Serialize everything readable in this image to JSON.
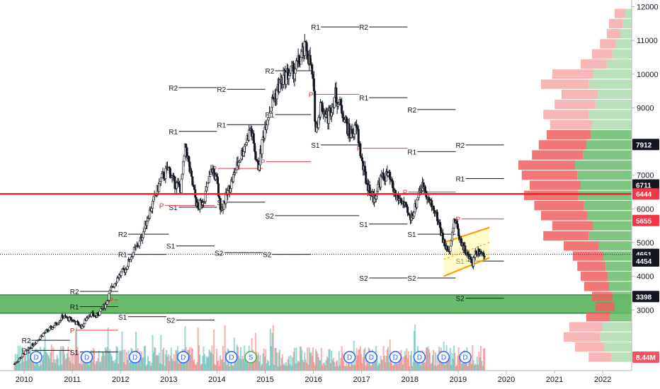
{
  "chart_data": {
    "type": "candlestick",
    "title": "",
    "xlabel": "",
    "ylabel": "",
    "ylim": [
      1200,
      12200
    ],
    "xlim": [
      2009.5,
      2022.6
    ],
    "x_ticks": [
      "2010",
      "2011",
      "2012",
      "2013",
      "2014",
      "2015",
      "2016",
      "2017",
      "2018",
      "2019",
      "2020",
      "2021",
      "2022"
    ],
    "y_ticks": [
      "3000",
      "4000",
      "5000",
      "6000",
      "7000",
      "8000",
      "9000",
      "10000",
      "11000",
      "12000"
    ],
    "price_path": [
      [
        2009.8,
        1400
      ],
      [
        2010.0,
        1700
      ],
      [
        2010.2,
        2000
      ],
      [
        2010.4,
        2300
      ],
      [
        2010.6,
        2500
      ],
      [
        2010.8,
        2800
      ],
      [
        2011.0,
        2700
      ],
      [
        2011.2,
        2500
      ],
      [
        2011.35,
        2900
      ],
      [
        2011.5,
        2800
      ],
      [
        2011.7,
        3200
      ],
      [
        2011.8,
        3600
      ],
      [
        2011.95,
        4000
      ],
      [
        2012.1,
        4200
      ],
      [
        2012.25,
        4700
      ],
      [
        2012.4,
        5000
      ],
      [
        2012.55,
        5700
      ],
      [
        2012.7,
        6300
      ],
      [
        2012.85,
        6900
      ],
      [
        2013.0,
        7200
      ],
      [
        2013.1,
        6800
      ],
      [
        2013.25,
        6600
      ],
      [
        2013.35,
        7900
      ],
      [
        2013.45,
        7000
      ],
      [
        2013.6,
        6000
      ],
      [
        2013.75,
        6400
      ],
      [
        2013.9,
        7200
      ],
      [
        2014.0,
        6800
      ],
      [
        2014.05,
        6200
      ],
      [
        2014.1,
        6000
      ],
      [
        2014.25,
        6600
      ],
      [
        2014.4,
        7200
      ],
      [
        2014.55,
        7800
      ],
      [
        2014.7,
        8400
      ],
      [
        2014.85,
        7200
      ],
      [
        2015.0,
        8500
      ],
      [
        2015.15,
        9200
      ],
      [
        2015.3,
        9700
      ],
      [
        2015.45,
        10000
      ],
      [
        2015.6,
        10100
      ],
      [
        2015.75,
        10500
      ],
      [
        2015.85,
        10800
      ],
      [
        2015.95,
        10200
      ],
      [
        2016.0,
        9600
      ],
      [
        2016.05,
        8300
      ],
      [
        2016.15,
        9100
      ],
      [
        2016.3,
        8700
      ],
      [
        2016.45,
        9400
      ],
      [
        2016.6,
        8900
      ],
      [
        2016.75,
        8200
      ],
      [
        2016.9,
        8400
      ],
      [
        2017.0,
        7400
      ],
      [
        2017.1,
        6800
      ],
      [
        2017.15,
        6600
      ],
      [
        2017.25,
        6300
      ],
      [
        2017.4,
        6900
      ],
      [
        2017.55,
        7000
      ],
      [
        2017.7,
        6400
      ],
      [
        2017.85,
        6200
      ],
      [
        2018.0,
        5700
      ],
      [
        2018.1,
        6000
      ],
      [
        2018.2,
        6600
      ],
      [
        2018.3,
        6700
      ],
      [
        2018.4,
        6200
      ],
      [
        2018.5,
        6000
      ],
      [
        2018.6,
        5600
      ],
      [
        2018.7,
        5000
      ],
      [
        2018.8,
        4700
      ],
      [
        2018.9,
        5500
      ],
      [
        2018.95,
        5700
      ],
      [
        2019.0,
        5300
      ],
      [
        2019.1,
        4900
      ],
      [
        2019.2,
        4600
      ],
      [
        2019.3,
        4400
      ],
      [
        2019.35,
        4700
      ],
      [
        2019.45,
        4800
      ],
      [
        2019.55,
        4600
      ]
    ],
    "pivots": [
      {
        "label": "R1",
        "level": 11400,
        "x_start": 2015.95,
        "x_end": 2016.95
      },
      {
        "label": "R2",
        "level": 11400,
        "x_start": 2016.95,
        "x_end": 2017.95
      },
      {
        "label": "R2",
        "level": 9600,
        "x_start": 2013.0,
        "x_end": 2014.0
      },
      {
        "label": "R2",
        "level": 9550,
        "x_start": 2014.0,
        "x_end": 2015.0
      },
      {
        "label": "R2",
        "level": 10100,
        "x_start": 2015.0,
        "x_end": 2015.95
      },
      {
        "label": "R1",
        "level": 9300,
        "x_start": 2016.95,
        "x_end": 2017.95
      },
      {
        "label": "R2",
        "level": 8950,
        "x_start": 2017.95,
        "x_end": 2018.95
      },
      {
        "label": "R1",
        "level": 8800,
        "x_start": 2015.0,
        "x_end": 2015.95
      },
      {
        "label": "R1",
        "level": 8500,
        "x_start": 2014.0,
        "x_end": 2015.0
      },
      {
        "label": "R1",
        "level": 8300,
        "x_start": 2013.0,
        "x_end": 2014.0
      },
      {
        "label": "S1",
        "level": 7900,
        "x_start": 2015.95,
        "x_end": 2016.95
      },
      {
        "label": "R2",
        "level": 7900,
        "x_start": 2018.95,
        "x_end": 2019.95
      },
      {
        "label": "R1",
        "level": 7700,
        "x_start": 2017.95,
        "x_end": 2018.95
      },
      {
        "label": "R1",
        "level": 6900,
        "x_start": 2018.95,
        "x_end": 2019.95
      },
      {
        "label": "S1",
        "level": 6050,
        "x_start": 2013.0,
        "x_end": 2014.0
      },
      {
        "label": "S1",
        "level": 6200,
        "x_start": 2014.0,
        "x_end": 2015.0
      },
      {
        "label": "S2",
        "level": 5800,
        "x_start": 2015.0,
        "x_end": 2016.95
      },
      {
        "label": "S1",
        "level": 5550,
        "x_start": 2016.95,
        "x_end": 2017.95
      },
      {
        "label": "R2",
        "level": 5250,
        "x_start": 2011.95,
        "x_end": 2013.0
      },
      {
        "label": "S1",
        "level": 5250,
        "x_start": 2017.95,
        "x_end": 2018.95
      },
      {
        "label": "S1",
        "level": 4900,
        "x_start": 2012.95,
        "x_end": 2013.95
      },
      {
        "label": "S2",
        "level": 4700,
        "x_start": 2013.95,
        "x_end": 2014.95
      },
      {
        "label": "S2",
        "level": 4650,
        "x_start": 2014.95,
        "x_end": 2015.95
      },
      {
        "label": "R1",
        "level": 4650,
        "x_start": 2011.95,
        "x_end": 2012.95
      },
      {
        "label": "S1",
        "level": 4450,
        "x_start": 2018.95,
        "x_end": 2019.95
      },
      {
        "label": "S2",
        "level": 3950,
        "x_start": 2016.95,
        "x_end": 2017.95
      },
      {
        "label": "S2",
        "level": 3950,
        "x_start": 2017.95,
        "x_end": 2018.95
      },
      {
        "label": "R2",
        "level": 3550,
        "x_start": 2010.95,
        "x_end": 2011.95
      },
      {
        "label": "R1",
        "level": 3100,
        "x_start": 2010.95,
        "x_end": 2011.95
      },
      {
        "label": "S2",
        "level": 3350,
        "x_start": 2018.95,
        "x_end": 2019.95
      },
      {
        "label": "S1",
        "level": 2800,
        "x_start": 2011.95,
        "x_end": 2012.95
      },
      {
        "label": "S2",
        "level": 2700,
        "x_start": 2012.95,
        "x_end": 2013.95
      },
      {
        "label": "R2",
        "level": 2100,
        "x_start": 2009.95,
        "x_end": 2010.95
      },
      {
        "label": "R1",
        "level": 1800,
        "x_start": 2009.95,
        "x_end": 2010.95
      },
      {
        "label": "S1",
        "level": 1750,
        "x_start": 2010.95,
        "x_end": 2011.95
      }
    ],
    "pivot_p_lines": [
      {
        "level": 3300,
        "x_start": 2011.75,
        "x_end": 2011.95
      },
      {
        "level": 2400,
        "x_start": 2010.95,
        "x_end": 2011.95
      },
      {
        "level": 6100,
        "x_start": 2012.8,
        "x_end": 2013.95
      },
      {
        "level": 7200,
        "x_start": 2013.9,
        "x_end": 2014.95
      },
      {
        "level": 7400,
        "x_start": 2014.9,
        "x_end": 2015.95
      },
      {
        "level": 9400,
        "x_start": 2015.9,
        "x_end": 2016.95
      },
      {
        "level": 7800,
        "x_start": 2016.9,
        "x_end": 2017.95
      },
      {
        "level": 6500,
        "x_start": 2017.85,
        "x_end": 2018.95
      },
      {
        "level": 5700,
        "x_start": 2018.95,
        "x_end": 2019.95
      }
    ],
    "red_support_line": 6444,
    "green_zone": [
      2900,
      3450
    ],
    "last_price": 4651,
    "channel": {
      "x_start": 2018.7,
      "x_end": 2019.65,
      "upper_start": 5000,
      "upper_end": 5450,
      "lower_start": 4000,
      "lower_end": 4550
    },
    "price_tags": [
      {
        "value": "12000",
        "y": 12000,
        "style": "axis"
      },
      {
        "value": "7912",
        "y": 7912,
        "bg": "#131722"
      },
      {
        "value": "6711",
        "y": 6711,
        "bg": "#131722"
      },
      {
        "value": "6444",
        "y": 6444,
        "bg": "#f23645"
      },
      {
        "value": "5655",
        "y": 5655,
        "bg": "#f23645"
      },
      {
        "value": "4651",
        "y": 4651,
        "bg": "#131722"
      },
      {
        "value": "4454",
        "y": 4454,
        "bg": "#131722"
      },
      {
        "value": "3398",
        "y": 3398,
        "bg": "#131722"
      },
      {
        "value": "8.44M",
        "y": 1600,
        "bg": "#f7525f"
      }
    ],
    "events": [
      {
        "label": "D",
        "x": 2010.25
      },
      {
        "label": "D",
        "x": 2011.3
      },
      {
        "label": "D",
        "x": 2012.3
      },
      {
        "label": "D",
        "x": 2013.3
      },
      {
        "label": "D",
        "x": 2014.3
      },
      {
        "label": "S",
        "x": 2014.7
      },
      {
        "label": "D",
        "x": 2016.75
      },
      {
        "label": "D",
        "x": 2017.2
      },
      {
        "label": "D",
        "x": 2017.7
      },
      {
        "label": "D",
        "x": 2018.2
      },
      {
        "label": "D",
        "x": 2018.7
      },
      {
        "label": "D",
        "x": 2019.15
      }
    ],
    "volume_profile": [
      {
        "price": 11800,
        "total": 0.15,
        "buy": 0.06
      },
      {
        "price": 11500,
        "total": 0.2,
        "buy": 0.08
      },
      {
        "price": 11200,
        "total": 0.22,
        "buy": 0.1
      },
      {
        "price": 10900,
        "total": 0.28,
        "buy": 0.14
      },
      {
        "price": 10600,
        "total": 0.35,
        "buy": 0.17
      },
      {
        "price": 10300,
        "total": 0.45,
        "buy": 0.22
      },
      {
        "price": 10000,
        "total": 0.7,
        "buy": 0.34
      },
      {
        "price": 9700,
        "total": 0.8,
        "buy": 0.38
      },
      {
        "price": 9400,
        "total": 0.62,
        "buy": 0.3
      },
      {
        "price": 9100,
        "total": 0.68,
        "buy": 0.32
      },
      {
        "price": 8800,
        "total": 0.78,
        "buy": 0.38
      },
      {
        "price": 8500,
        "total": 0.72,
        "buy": 0.35
      },
      {
        "price": 8200,
        "total": 0.75,
        "buy": 0.36
      },
      {
        "price": 7900,
        "total": 0.82,
        "buy": 0.4
      },
      {
        "price": 7600,
        "total": 0.88,
        "buy": 0.43
      },
      {
        "price": 7300,
        "total": 1.0,
        "buy": 0.5
      },
      {
        "price": 7000,
        "total": 0.97,
        "buy": 0.48
      },
      {
        "price": 6700,
        "total": 0.9,
        "buy": 0.45
      },
      {
        "price": 6400,
        "total": 0.95,
        "buy": 0.47
      },
      {
        "price": 6100,
        "total": 0.86,
        "buy": 0.42
      },
      {
        "price": 5800,
        "total": 0.8,
        "buy": 0.39
      },
      {
        "price": 5500,
        "total": 0.7,
        "buy": 0.34
      },
      {
        "price": 5200,
        "total": 0.78,
        "buy": 0.38
      },
      {
        "price": 4900,
        "total": 0.6,
        "buy": 0.29
      },
      {
        "price": 4600,
        "total": 0.52,
        "buy": 0.25
      },
      {
        "price": 4300,
        "total": 0.48,
        "buy": 0.23
      },
      {
        "price": 4000,
        "total": 0.45,
        "buy": 0.21
      },
      {
        "price": 3700,
        "total": 0.42,
        "buy": 0.2
      },
      {
        "price": 3400,
        "total": 0.35,
        "buy": 0.17
      },
      {
        "price": 3100,
        "total": 0.32,
        "buy": 0.15
      },
      {
        "price": 2800,
        "total": 0.4,
        "buy": 0.19
      },
      {
        "price": 2500,
        "total": 0.55,
        "buy": 0.26
      },
      {
        "price": 2200,
        "total": 0.6,
        "buy": 0.28
      },
      {
        "price": 1900,
        "total": 0.5,
        "buy": 0.24
      },
      {
        "price": 1600,
        "total": 0.38,
        "buy": 0.18
      }
    ],
    "colors": {
      "bull": "#26a69a",
      "bear": "#ef5350",
      "pivot": "#131722",
      "pivot_p": "#f23645",
      "support": "#ff1f1f",
      "zone_fill": "#4caf50",
      "channel": "#ff9800",
      "vp_buy": "#66bb6a",
      "vp_sell": "#f06060",
      "event": "#2962ff"
    },
    "grid": false,
    "legend": "none"
  }
}
